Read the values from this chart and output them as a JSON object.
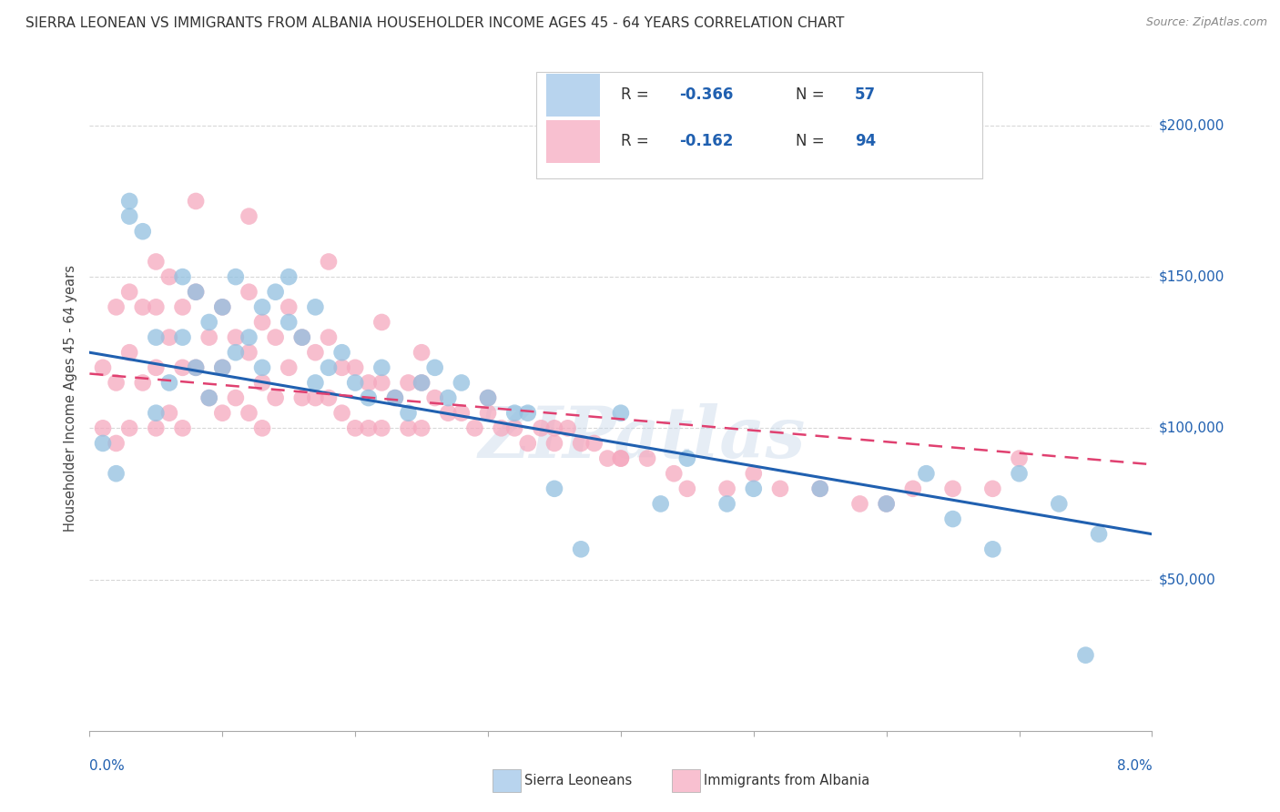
{
  "title": "SIERRA LEONEAN VS IMMIGRANTS FROM ALBANIA HOUSEHOLDER INCOME AGES 45 - 64 YEARS CORRELATION CHART",
  "source": "Source: ZipAtlas.com",
  "ylabel": "Householder Income Ages 45 - 64 years",
  "xmin": 0.0,
  "xmax": 0.08,
  "ymin": 0,
  "ymax": 220000,
  "ytick_labels": [
    "$50,000",
    "$100,000",
    "$150,000",
    "$200,000"
  ],
  "ytick_values": [
    50000,
    100000,
    150000,
    200000
  ],
  "watermark": "ZIPatlas",
  "blue_color": "#92c0e0",
  "pink_color": "#f5a8be",
  "blue_line_color": "#2060b0",
  "pink_line_color": "#e04070",
  "legend_blue_fill": "#b8d4ee",
  "legend_pink_fill": "#f8c0d0",
  "label_color": "#2060b0",
  "grid_color": "#d8d8d8",
  "spine_color": "#aaaaaa",
  "title_color": "#333333",
  "source_color": "#888888",
  "ylabel_color": "#444444",
  "watermark_color": "#c8d8ea",
  "bottom_label_color": "#333333",
  "sl_x": [
    0.001,
    0.002,
    0.003,
    0.003,
    0.004,
    0.005,
    0.005,
    0.006,
    0.007,
    0.007,
    0.008,
    0.008,
    0.009,
    0.009,
    0.01,
    0.01,
    0.011,
    0.011,
    0.012,
    0.013,
    0.013,
    0.014,
    0.015,
    0.015,
    0.016,
    0.017,
    0.017,
    0.018,
    0.019,
    0.02,
    0.021,
    0.022,
    0.023,
    0.024,
    0.025,
    0.026,
    0.027,
    0.028,
    0.03,
    0.032,
    0.033,
    0.035,
    0.037,
    0.04,
    0.043,
    0.045,
    0.048,
    0.05,
    0.055,
    0.06,
    0.063,
    0.065,
    0.068,
    0.07,
    0.073,
    0.075,
    0.076
  ],
  "sl_y": [
    95000,
    85000,
    170000,
    175000,
    165000,
    130000,
    105000,
    115000,
    150000,
    130000,
    145000,
    120000,
    135000,
    110000,
    140000,
    120000,
    150000,
    125000,
    130000,
    140000,
    120000,
    145000,
    135000,
    150000,
    130000,
    140000,
    115000,
    120000,
    125000,
    115000,
    110000,
    120000,
    110000,
    105000,
    115000,
    120000,
    110000,
    115000,
    110000,
    105000,
    105000,
    80000,
    60000,
    105000,
    75000,
    90000,
    75000,
    80000,
    80000,
    75000,
    85000,
    70000,
    60000,
    85000,
    75000,
    25000,
    65000
  ],
  "al_x": [
    0.001,
    0.001,
    0.002,
    0.002,
    0.002,
    0.003,
    0.003,
    0.003,
    0.004,
    0.004,
    0.005,
    0.005,
    0.005,
    0.006,
    0.006,
    0.006,
    0.007,
    0.007,
    0.007,
    0.008,
    0.008,
    0.009,
    0.009,
    0.01,
    0.01,
    0.01,
    0.011,
    0.011,
    0.012,
    0.012,
    0.012,
    0.013,
    0.013,
    0.013,
    0.014,
    0.014,
    0.015,
    0.015,
    0.016,
    0.016,
    0.017,
    0.017,
    0.018,
    0.018,
    0.019,
    0.019,
    0.02,
    0.02,
    0.021,
    0.021,
    0.022,
    0.022,
    0.023,
    0.024,
    0.024,
    0.025,
    0.025,
    0.026,
    0.027,
    0.028,
    0.029,
    0.03,
    0.031,
    0.032,
    0.033,
    0.034,
    0.035,
    0.036,
    0.037,
    0.038,
    0.039,
    0.04,
    0.042,
    0.044,
    0.045,
    0.048,
    0.05,
    0.052,
    0.055,
    0.058,
    0.06,
    0.062,
    0.065,
    0.068,
    0.07,
    0.005,
    0.008,
    0.012,
    0.018,
    0.022,
    0.025,
    0.03,
    0.035,
    0.04
  ],
  "al_y": [
    120000,
    100000,
    140000,
    115000,
    95000,
    145000,
    125000,
    100000,
    140000,
    115000,
    140000,
    120000,
    100000,
    150000,
    130000,
    105000,
    140000,
    120000,
    100000,
    145000,
    120000,
    130000,
    110000,
    140000,
    120000,
    105000,
    130000,
    110000,
    145000,
    125000,
    105000,
    135000,
    115000,
    100000,
    130000,
    110000,
    140000,
    120000,
    130000,
    110000,
    125000,
    110000,
    130000,
    110000,
    120000,
    105000,
    120000,
    100000,
    115000,
    100000,
    115000,
    100000,
    110000,
    115000,
    100000,
    115000,
    100000,
    110000,
    105000,
    105000,
    100000,
    105000,
    100000,
    100000,
    95000,
    100000,
    95000,
    100000,
    95000,
    95000,
    90000,
    90000,
    90000,
    85000,
    80000,
    80000,
    85000,
    80000,
    80000,
    75000,
    75000,
    80000,
    80000,
    80000,
    90000,
    155000,
    175000,
    170000,
    155000,
    135000,
    125000,
    110000,
    100000,
    90000
  ]
}
